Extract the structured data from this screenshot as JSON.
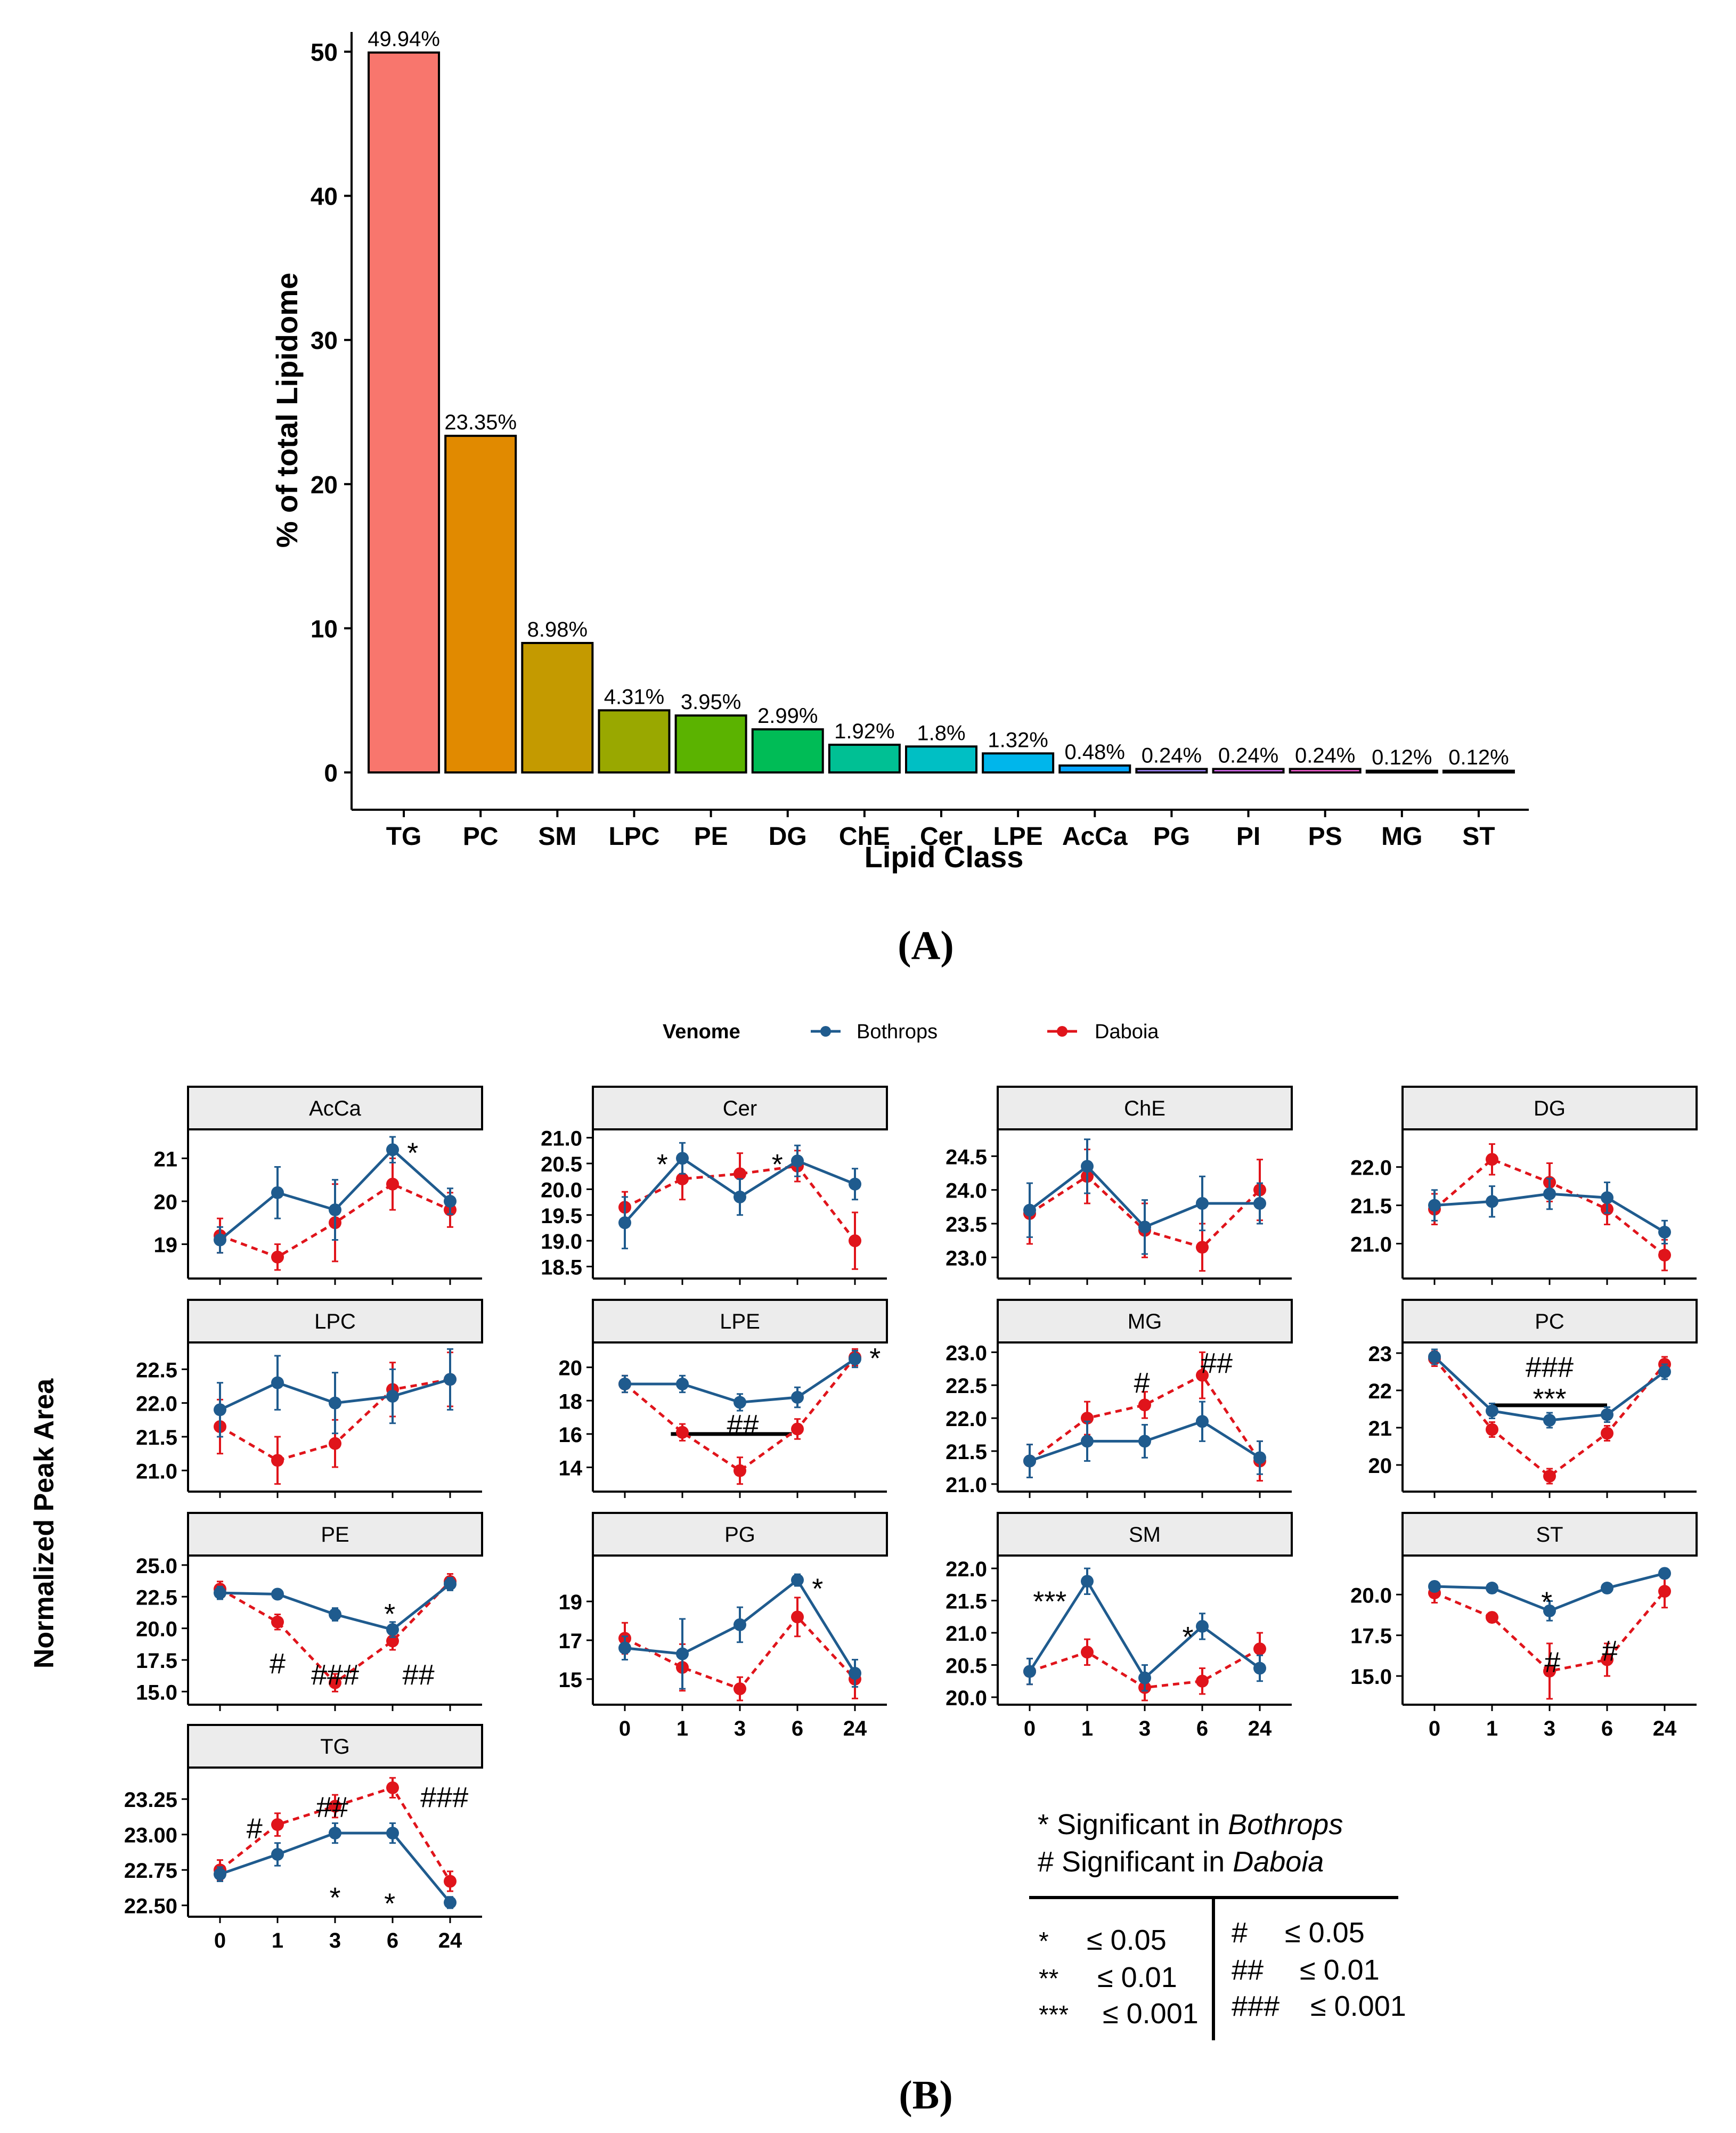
{
  "colors": {
    "bothrops": "#1f5b8e",
    "daboia": "#e0141b",
    "strip_bg": "#ececec",
    "axis": "#000000",
    "bars": [
      "#f8766d",
      "#e18a00",
      "#c49a00",
      "#99a800",
      "#5bb300",
      "#00bc56",
      "#00c094",
      "#00bfc4",
      "#00b6eb",
      "#06a4ff",
      "#a58aff",
      "#df70f8",
      "#fb61d7",
      "#ff66a8",
      "#f8766d"
    ]
  },
  "panel_a": {
    "label": "(A)",
    "chart_data": {
      "type": "bar",
      "title": "",
      "xlabel": "Lipid Class",
      "ylabel": "% of total Lipidome",
      "categories": [
        "TG",
        "PC",
        "SM",
        "LPC",
        "PE",
        "DG",
        "ChE",
        "Cer",
        "LPE",
        "AcCa",
        "PG",
        "PI",
        "PS",
        "MG",
        "ST"
      ],
      "values": [
        49.94,
        23.35,
        8.98,
        4.31,
        3.95,
        2.99,
        1.92,
        1.8,
        1.32,
        0.48,
        0.24,
        0.24,
        0.24,
        0.12,
        0.12
      ],
      "value_labels": [
        "49.94%",
        "23.35%",
        "8.98%",
        "4.31%",
        "3.95%",
        "2.99%",
        "1.92%",
        "1.8%",
        "1.32%",
        "0.48%",
        "0.24%",
        "0.24%",
        "0.24%",
        "0.12%",
        "0.12%"
      ],
      "yticks": [
        "0",
        "10",
        "20",
        "30",
        "40",
        "50"
      ],
      "ylim": [
        0,
        52
      ]
    }
  },
  "panel_b": {
    "label": "(B)",
    "ylabel": "Normalized Peak Area",
    "legend": {
      "title": "Venome",
      "series": [
        "Bothrops",
        "Daboia"
      ]
    },
    "x_tick_labels": [
      "0",
      "1",
      "3",
      "6",
      "24"
    ],
    "chart_data": [
      {
        "type": "line",
        "facet": "AcCa",
        "ylim": [
          18.3,
          21.6
        ],
        "yticks": [
          19,
          20,
          21
        ],
        "ytick_labels": [
          "19",
          "20",
          "21"
        ],
        "series": [
          {
            "name": "Bothrops",
            "values": [
              19.1,
              20.2,
              19.8,
              21.2,
              20.0
            ],
            "err": [
              0.3,
              0.6,
              0.7,
              0.3,
              0.3
            ]
          },
          {
            "name": "Daboia",
            "values": [
              19.2,
              18.7,
              19.5,
              20.4,
              19.8
            ],
            "err": [
              0.4,
              0.3,
              0.9,
              0.6,
              0.4
            ]
          }
        ],
        "annotations": [
          {
            "text": "*",
            "x": 3.35,
            "y": 21.15
          }
        ]
      },
      {
        "type": "line",
        "facet": "Cer",
        "ylim": [
          18.35,
          21.1
        ],
        "yticks": [
          18.5,
          19.0,
          19.5,
          20.0,
          20.5,
          21.0
        ],
        "ytick_labels": [
          "18.5",
          "19.0",
          "19.5",
          "20.0",
          "20.5",
          "21.0"
        ],
        "series": [
          {
            "name": "Bothrops",
            "values": [
              19.35,
              20.6,
              19.85,
              20.55,
              20.1
            ],
            "err": [
              0.5,
              0.3,
              0.35,
              0.3,
              0.3
            ]
          },
          {
            "name": "Daboia",
            "values": [
              19.65,
              20.2,
              20.3,
              20.45,
              19.0
            ],
            "err": [
              0.3,
              0.4,
              0.4,
              0.3,
              0.55
            ]
          }
        ],
        "annotations": [
          {
            "text": "*",
            "x": 0.65,
            "y": 20.5
          },
          {
            "text": "*",
            "x": 2.65,
            "y": 20.5
          }
        ]
      },
      {
        "type": "line",
        "facet": "ChE",
        "ylim": [
          22.75,
          24.85
        ],
        "yticks": [
          23.0,
          23.5,
          24.0,
          24.5
        ],
        "ytick_labels": [
          "23.0",
          "23.5",
          "24.0",
          "24.5"
        ],
        "series": [
          {
            "name": "Bothrops",
            "values": [
              23.7,
              24.35,
              23.45,
              23.8,
              23.8
            ],
            "err": [
              0.4,
              0.4,
              0.4,
              0.4,
              0.3
            ]
          },
          {
            "name": "Daboia",
            "values": [
              23.65,
              24.2,
              23.4,
              23.15,
              24.0
            ],
            "err": [
              0.45,
              0.4,
              0.4,
              0.35,
              0.45
            ]
          }
        ],
        "annotations": []
      },
      {
        "type": "line",
        "facet": "DG",
        "ylim": [
          20.6,
          22.45
        ],
        "yticks": [
          21.0,
          21.5,
          22.0
        ],
        "ytick_labels": [
          "21.0",
          "21.5",
          "22.0"
        ],
        "series": [
          {
            "name": "Bothrops",
            "values": [
              21.5,
              21.55,
              21.65,
              21.6,
              21.15
            ],
            "err": [
              0.2,
              0.2,
              0.2,
              0.2,
              0.15
            ]
          },
          {
            "name": "Daboia",
            "values": [
              21.45,
              22.1,
              21.8,
              21.45,
              20.85
            ],
            "err": [
              0.2,
              0.2,
              0.25,
              0.2,
              0.2
            ]
          }
        ],
        "annotations": []
      },
      {
        "type": "line",
        "facet": "LPC",
        "ylim": [
          20.75,
          22.85
        ],
        "yticks": [
          21.0,
          21.5,
          22.0,
          22.5
        ],
        "ytick_labels": [
          "21.0",
          "21.5",
          "22.0",
          "22.5"
        ],
        "series": [
          {
            "name": "Bothrops",
            "values": [
              21.9,
              22.3,
              22.0,
              22.1,
              22.35
            ],
            "err": [
              0.4,
              0.4,
              0.45,
              0.4,
              0.45
            ]
          },
          {
            "name": "Daboia",
            "values": [
              21.65,
              21.15,
              21.4,
              22.2,
              22.35
            ],
            "err": [
              0.4,
              0.35,
              0.35,
              0.4,
              0.4
            ]
          }
        ],
        "annotations": []
      },
      {
        "type": "line",
        "facet": "LPE",
        "ylim": [
          12.8,
          21.3
        ],
        "yticks": [
          14,
          16,
          18,
          20
        ],
        "ytick_labels": [
          "14",
          "16",
          "18",
          "20"
        ],
        "series": [
          {
            "name": "Bothrops",
            "values": [
              19.0,
              19.0,
              17.9,
              18.2,
              20.5
            ],
            "err": [
              0.5,
              0.5,
              0.5,
              0.6,
              0.5
            ]
          },
          {
            "name": "Daboia",
            "values": [
              19.0,
              16.1,
              13.8,
              16.3,
              20.6
            ],
            "err": [
              0.5,
              0.5,
              0.8,
              0.6,
              0.5
            ]
          }
        ],
        "bracket": {
          "from": 0.8,
          "to": 2.9,
          "y": 16.0
        },
        "annotations": [
          {
            "text": "##",
            "x": 2.05,
            "y": 16.6
          },
          {
            "text": "*",
            "x": 4.35,
            "y": 20.6
          }
        ]
      },
      {
        "type": "line",
        "facet": "MG",
        "ylim": [
          20.95,
          23.1
        ],
        "yticks": [
          21.0,
          21.5,
          22.0,
          22.5,
          23.0
        ],
        "ytick_labels": [
          "21.0",
          "21.5",
          "22.0",
          "22.5",
          "23.0"
        ],
        "series": [
          {
            "name": "Bothrops",
            "values": [
              21.35,
              21.65,
              21.65,
              21.95,
              21.4
            ],
            "err": [
              0.25,
              0.3,
              0.25,
              0.3,
              0.25
            ]
          },
          {
            "name": "Daboia",
            "values": [
              21.35,
              22.0,
              22.2,
              22.65,
              21.35
            ],
            "err": [
              0.25,
              0.25,
              0.2,
              0.35,
              0.3
            ]
          }
        ],
        "annotations": [
          {
            "text": "#",
            "x": 1.95,
            "y": 22.55
          },
          {
            "text": "##",
            "x": 3.25,
            "y": 22.85
          }
        ]
      },
      {
        "type": "line",
        "facet": "PC",
        "ylim": [
          19.4,
          23.2
        ],
        "yticks": [
          20,
          21,
          22,
          23
        ],
        "ytick_labels": [
          "20",
          "21",
          "22",
          "23"
        ],
        "series": [
          {
            "name": "Bothrops",
            "values": [
              22.9,
              21.45,
              21.2,
              21.35,
              22.5
            ],
            "err": [
              0.2,
              0.2,
              0.2,
              0.2,
              0.2
            ]
          },
          {
            "name": "Daboia",
            "values": [
              22.85,
              20.95,
              19.7,
              20.85,
              22.7
            ],
            "err": [
              0.2,
              0.2,
              0.2,
              0.2,
              0.2
            ]
          }
        ],
        "bracket": {
          "from": 1.0,
          "to": 3.0,
          "y": 21.6
        },
        "annotations": [
          {
            "text": "###",
            "x": 2.0,
            "y": 22.65
          },
          {
            "text": "***",
            "x": 2.0,
            "y": 21.8
          }
        ]
      },
      {
        "type": "line",
        "facet": "PE",
        "ylim": [
          14.3,
          25.5
        ],
        "yticks": [
          15.0,
          17.5,
          20.0,
          22.5,
          25.0
        ],
        "ytick_labels": [
          "15.0",
          "17.5",
          "20.0",
          "22.5",
          "25.0"
        ],
        "series": [
          {
            "name": "Bothrops",
            "values": [
              22.8,
              22.7,
              21.1,
              19.9,
              23.5
            ],
            "err": [
              0.5,
              0.3,
              0.5,
              0.6,
              0.5
            ]
          },
          {
            "name": "Daboia",
            "values": [
              23.1,
              20.5,
              15.7,
              19.0,
              23.7
            ],
            "err": [
              0.6,
              0.6,
              0.7,
              0.7,
              0.6
            ]
          }
        ],
        "annotations": [
          {
            "text": "*",
            "x": 2.95,
            "y": 21.2
          },
          {
            "text": "#",
            "x": 1.0,
            "y": 17.3
          },
          {
            "text": "###",
            "x": 2.0,
            "y": 16.4
          },
          {
            "text": "##",
            "x": 3.45,
            "y": 16.4
          }
        ]
      },
      {
        "type": "line",
        "facet": "PG",
        "ylim": [
          13.9,
          21.2
        ],
        "yticks": [
          15,
          17,
          19
        ],
        "ytick_labels": [
          "15",
          "17",
          "19"
        ],
        "series": [
          {
            "name": "Bothrops",
            "values": [
              16.6,
              16.3,
              17.8,
              20.1,
              15.3
            ],
            "err": [
              0.6,
              1.8,
              0.9,
              0.3,
              0.7
            ]
          },
          {
            "name": "Daboia",
            "values": [
              17.1,
              15.6,
              14.5,
              18.2,
              15.0
            ],
            "err": [
              0.8,
              1.2,
              0.6,
              1.0,
              1.0
            ]
          }
        ],
        "annotations": [
          {
            "text": "*",
            "x": 3.35,
            "y": 19.7
          }
        ]
      },
      {
        "type": "line",
        "facet": "SM",
        "ylim": [
          19.95,
          22.15
        ],
        "yticks": [
          20.0,
          20.5,
          21.0,
          21.5,
          22.0
        ],
        "ytick_labels": [
          "20.0",
          "20.5",
          "21.0",
          "21.5",
          "22.0"
        ],
        "series": [
          {
            "name": "Bothrops",
            "values": [
              20.4,
              21.8,
              20.3,
              21.1,
              20.45
            ],
            "err": [
              0.2,
              0.2,
              0.2,
              0.2,
              0.2
            ]
          },
          {
            "name": "Daboia",
            "values": [
              20.4,
              20.7,
              20.15,
              20.25,
              20.75
            ],
            "err": [
              0.2,
              0.2,
              0.2,
              0.2,
              0.25
            ]
          }
        ],
        "annotations": [
          {
            "text": "***",
            "x": 0.35,
            "y": 21.5
          },
          {
            "text": "*",
            "x": 2.75,
            "y": 20.95
          }
        ]
      },
      {
        "type": "line",
        "facet": "ST",
        "ylim": [
          13.5,
          22.2
        ],
        "yticks": [
          15.0,
          17.5,
          20.0
        ],
        "ytick_labels": [
          "15.0",
          "17.5",
          "20.0"
        ],
        "series": [
          {
            "name": "Bothrops",
            "values": [
              20.5,
              20.4,
              19.0,
              20.4,
              21.3
            ],
            "err": [
              0.3,
              0.3,
              0.6,
              0.3,
              0.3
            ]
          },
          {
            "name": "Daboia",
            "values": [
              20.1,
              18.6,
              15.3,
              16.0,
              20.2
            ],
            "err": [
              0.6,
              0.3,
              1.7,
              1.0,
              1.0
            ]
          }
        ],
        "annotations": [
          {
            "text": "*",
            "x": 1.95,
            "y": 19.6
          },
          {
            "text": "#",
            "x": 2.05,
            "y": 15.9
          },
          {
            "text": "#",
            "x": 3.05,
            "y": 16.6
          }
        ]
      },
      {
        "type": "line",
        "facet": "TG",
        "ylim": [
          22.45,
          23.45
        ],
        "yticks": [
          22.5,
          22.75,
          23.0,
          23.25
        ],
        "ytick_labels": [
          "22.50",
          "22.75",
          "23.00",
          "23.25"
        ],
        "series": [
          {
            "name": "Bothrops",
            "values": [
              22.72,
              22.86,
              23.01,
              23.01,
              22.52
            ],
            "err": [
              0.05,
              0.08,
              0.07,
              0.07,
              0.04
            ]
          },
          {
            "name": "Daboia",
            "values": [
              22.75,
              23.07,
              23.2,
              23.33,
              22.67
            ],
            "err": [
              0.07,
              0.08,
              0.08,
              0.07,
              0.07
            ]
          }
        ],
        "annotations": [
          {
            "text": "#",
            "x": 0.6,
            "y": 23.05
          },
          {
            "text": "##",
            "x": 1.95,
            "y": 23.2
          },
          {
            "text": "###",
            "x": 3.9,
            "y": 23.27
          },
          {
            "text": "*",
            "x": 2.0,
            "y": 22.56
          },
          {
            "text": "*",
            "x": 2.95,
            "y": 22.52
          }
        ]
      }
    ],
    "significance_legend": {
      "line1_prefix": "* Significant in ",
      "line1_genus": "Bothrops",
      "line2_prefix": "# Significant in ",
      "line2_genus": "Daboia",
      "left": [
        {
          "symbol": "*",
          "threshold": "≤ 0.05"
        },
        {
          "symbol": "**",
          "threshold": "≤ 0.01"
        },
        {
          "symbol": "***",
          "threshold": "≤ 0.001"
        }
      ],
      "right": [
        {
          "symbol": "#",
          "threshold": "≤ 0.05"
        },
        {
          "symbol": "##",
          "threshold": "≤ 0.01"
        },
        {
          "symbol": "###",
          "threshold": "≤ 0.001"
        }
      ]
    }
  }
}
